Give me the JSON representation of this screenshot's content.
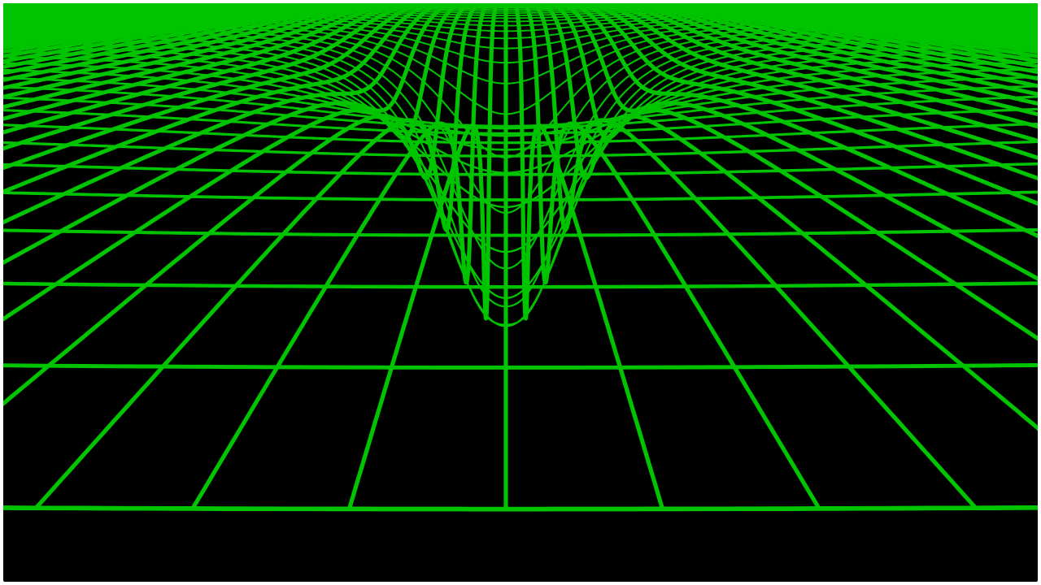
{
  "scene": {
    "subject": "gravity-well-wireframe-grid",
    "background_color": "#000000",
    "frame_color": "#ffffff",
    "line_color": "#00c400"
  }
}
